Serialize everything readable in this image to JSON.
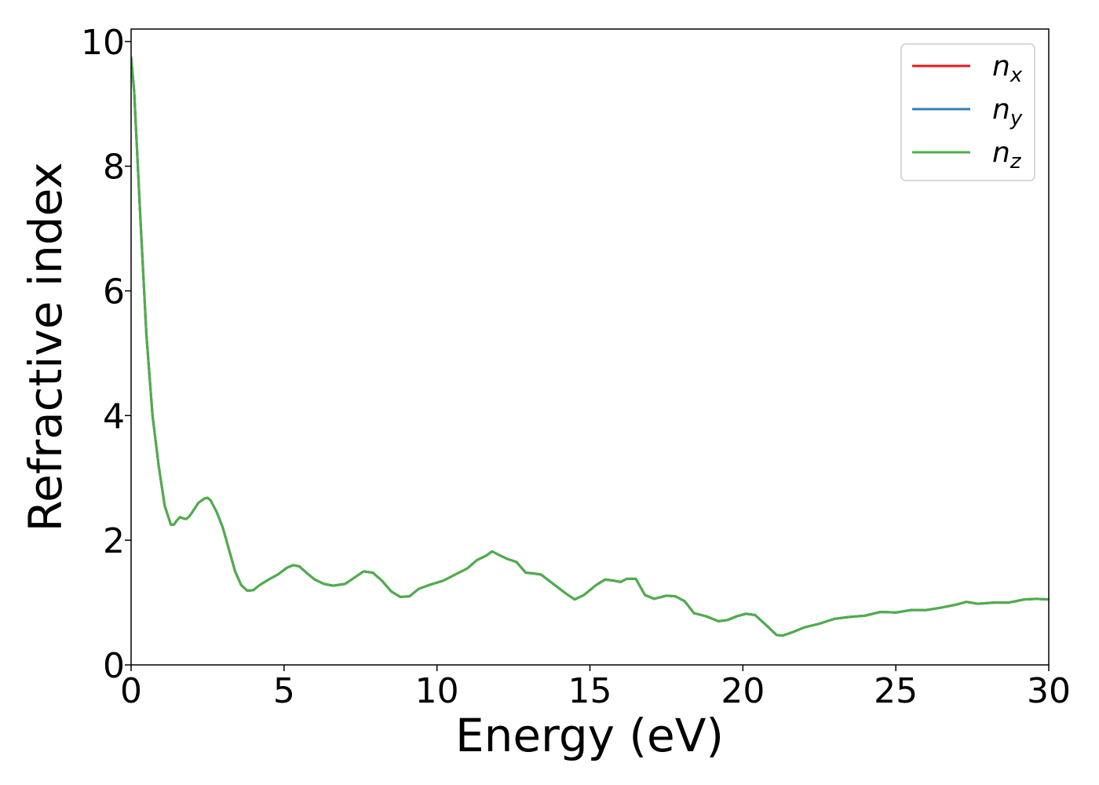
{
  "chart_data": {
    "type": "line",
    "xlabel": "Energy (eV)",
    "ylabel": "Refractive index",
    "xlim": [
      0,
      30
    ],
    "ylim": [
      0,
      10.2
    ],
    "x_ticks": [
      0,
      5,
      10,
      15,
      20,
      25,
      30
    ],
    "y_ticks": [
      0,
      2,
      4,
      6,
      8,
      10
    ],
    "grid": false,
    "legend_position": "top-right",
    "series": [
      {
        "name": "n",
        "subscript": "x",
        "color": "#e41a1c",
        "x": [
          0,
          0.1,
          0.3,
          0.5,
          0.7,
          0.9,
          1.1,
          1.3,
          1.4,
          1.5,
          1.6,
          1.7,
          1.8,
          1.9,
          2.0,
          2.2,
          2.4,
          2.5,
          2.6,
          2.8,
          3.0,
          3.2,
          3.4,
          3.6,
          3.8,
          4.0,
          4.2,
          4.5,
          4.8,
          5.1,
          5.3,
          5.5,
          5.8,
          6.0,
          6.3,
          6.6,
          7.0,
          7.3,
          7.6,
          7.9,
          8.2,
          8.5,
          8.8,
          9.1,
          9.4,
          9.8,
          10.2,
          10.6,
          11.0,
          11.3,
          11.6,
          11.8,
          12.0,
          12.3,
          12.6,
          12.9,
          13.1,
          13.4,
          13.8,
          14.2,
          14.5,
          14.8,
          15.2,
          15.5,
          15.8,
          16.0,
          16.2,
          16.5,
          16.8,
          17.1,
          17.5,
          17.8,
          18.1,
          18.4,
          18.8,
          19.2,
          19.5,
          19.8,
          20.1,
          20.4,
          20.8,
          21.1,
          21.3,
          21.6,
          22.0,
          22.5,
          23.0,
          23.5,
          24.0,
          24.5,
          25.0,
          25.5,
          26.0,
          26.5,
          27.0,
          27.3,
          27.7,
          28.2,
          28.7,
          29.2,
          29.6,
          30.0
        ],
        "y": [
          9.75,
          9.2,
          7.2,
          5.3,
          4.0,
          3.2,
          2.55,
          2.25,
          2.25,
          2.32,
          2.37,
          2.35,
          2.34,
          2.38,
          2.45,
          2.6,
          2.67,
          2.68,
          2.64,
          2.45,
          2.2,
          1.85,
          1.5,
          1.28,
          1.19,
          1.2,
          1.28,
          1.37,
          1.45,
          1.56,
          1.6,
          1.58,
          1.45,
          1.37,
          1.3,
          1.27,
          1.3,
          1.4,
          1.5,
          1.48,
          1.35,
          1.18,
          1.09,
          1.1,
          1.22,
          1.29,
          1.35,
          1.45,
          1.55,
          1.68,
          1.75,
          1.82,
          1.77,
          1.7,
          1.65,
          1.48,
          1.47,
          1.45,
          1.3,
          1.15,
          1.05,
          1.12,
          1.28,
          1.37,
          1.35,
          1.33,
          1.38,
          1.38,
          1.12,
          1.06,
          1.11,
          1.1,
          1.02,
          0.83,
          0.78,
          0.7,
          0.72,
          0.78,
          0.82,
          0.8,
          0.62,
          0.48,
          0.47,
          0.52,
          0.6,
          0.66,
          0.74,
          0.77,
          0.79,
          0.85,
          0.84,
          0.88,
          0.88,
          0.92,
          0.97,
          1.01,
          0.98,
          1.0,
          1.0,
          1.05,
          1.06,
          1.05
        ]
      },
      {
        "name": "n",
        "subscript": "y",
        "color": "#377eb8",
        "x": [
          0,
          0.1,
          0.3,
          0.5,
          0.7,
          0.9,
          1.1,
          1.3,
          1.4,
          1.5,
          1.6,
          1.7,
          1.8,
          1.9,
          2.0,
          2.2,
          2.4,
          2.5,
          2.6,
          2.8,
          3.0,
          3.2,
          3.4,
          3.6,
          3.8,
          4.0,
          4.2,
          4.5,
          4.8,
          5.1,
          5.3,
          5.5,
          5.8,
          6.0,
          6.3,
          6.6,
          7.0,
          7.3,
          7.6,
          7.9,
          8.2,
          8.5,
          8.8,
          9.1,
          9.4,
          9.8,
          10.2,
          10.6,
          11.0,
          11.3,
          11.6,
          11.8,
          12.0,
          12.3,
          12.6,
          12.9,
          13.1,
          13.4,
          13.8,
          14.2,
          14.5,
          14.8,
          15.2,
          15.5,
          15.8,
          16.0,
          16.2,
          16.5,
          16.8,
          17.1,
          17.5,
          17.8,
          18.1,
          18.4,
          18.8,
          19.2,
          19.5,
          19.8,
          20.1,
          20.4,
          20.8,
          21.1,
          21.3,
          21.6,
          22.0,
          22.5,
          23.0,
          23.5,
          24.0,
          24.5,
          25.0,
          25.5,
          26.0,
          26.5,
          27.0,
          27.3,
          27.7,
          28.2,
          28.7,
          29.2,
          29.6,
          30.0
        ],
        "y": [
          9.75,
          9.2,
          7.2,
          5.3,
          4.0,
          3.2,
          2.55,
          2.25,
          2.25,
          2.32,
          2.37,
          2.35,
          2.34,
          2.38,
          2.45,
          2.6,
          2.67,
          2.68,
          2.64,
          2.45,
          2.2,
          1.85,
          1.5,
          1.28,
          1.19,
          1.2,
          1.28,
          1.37,
          1.45,
          1.56,
          1.6,
          1.58,
          1.45,
          1.37,
          1.3,
          1.27,
          1.3,
          1.4,
          1.5,
          1.48,
          1.35,
          1.18,
          1.09,
          1.1,
          1.22,
          1.29,
          1.35,
          1.45,
          1.55,
          1.68,
          1.75,
          1.82,
          1.77,
          1.7,
          1.65,
          1.48,
          1.47,
          1.45,
          1.3,
          1.15,
          1.05,
          1.12,
          1.28,
          1.37,
          1.35,
          1.33,
          1.38,
          1.38,
          1.12,
          1.06,
          1.11,
          1.1,
          1.02,
          0.83,
          0.78,
          0.7,
          0.72,
          0.78,
          0.82,
          0.8,
          0.62,
          0.48,
          0.47,
          0.52,
          0.6,
          0.66,
          0.74,
          0.77,
          0.79,
          0.85,
          0.84,
          0.88,
          0.88,
          0.92,
          0.97,
          1.01,
          0.98,
          1.0,
          1.0,
          1.05,
          1.06,
          1.05
        ]
      },
      {
        "name": "n",
        "subscript": "z",
        "color": "#4daf4a",
        "x": [
          0,
          0.1,
          0.3,
          0.5,
          0.7,
          0.9,
          1.1,
          1.3,
          1.4,
          1.5,
          1.6,
          1.7,
          1.8,
          1.9,
          2.0,
          2.2,
          2.4,
          2.5,
          2.6,
          2.8,
          3.0,
          3.2,
          3.4,
          3.6,
          3.8,
          4.0,
          4.2,
          4.5,
          4.8,
          5.1,
          5.3,
          5.5,
          5.8,
          6.0,
          6.3,
          6.6,
          7.0,
          7.3,
          7.6,
          7.9,
          8.2,
          8.5,
          8.8,
          9.1,
          9.4,
          9.8,
          10.2,
          10.6,
          11.0,
          11.3,
          11.6,
          11.8,
          12.0,
          12.3,
          12.6,
          12.9,
          13.1,
          13.4,
          13.8,
          14.2,
          14.5,
          14.8,
          15.2,
          15.5,
          15.8,
          16.0,
          16.2,
          16.5,
          16.8,
          17.1,
          17.5,
          17.8,
          18.1,
          18.4,
          18.8,
          19.2,
          19.5,
          19.8,
          20.1,
          20.4,
          20.8,
          21.1,
          21.3,
          21.6,
          22.0,
          22.5,
          23.0,
          23.5,
          24.0,
          24.5,
          25.0,
          25.5,
          26.0,
          26.5,
          27.0,
          27.3,
          27.7,
          28.2,
          28.7,
          29.2,
          29.6,
          30.0
        ],
        "y": [
          9.75,
          9.2,
          7.2,
          5.3,
          4.0,
          3.2,
          2.55,
          2.25,
          2.25,
          2.32,
          2.37,
          2.35,
          2.34,
          2.38,
          2.45,
          2.6,
          2.67,
          2.68,
          2.64,
          2.45,
          2.2,
          1.85,
          1.5,
          1.28,
          1.19,
          1.2,
          1.28,
          1.37,
          1.45,
          1.56,
          1.6,
          1.58,
          1.45,
          1.37,
          1.3,
          1.27,
          1.3,
          1.4,
          1.5,
          1.48,
          1.35,
          1.18,
          1.09,
          1.1,
          1.22,
          1.29,
          1.35,
          1.45,
          1.55,
          1.68,
          1.75,
          1.82,
          1.77,
          1.7,
          1.65,
          1.48,
          1.47,
          1.45,
          1.3,
          1.15,
          1.05,
          1.12,
          1.28,
          1.37,
          1.35,
          1.33,
          1.38,
          1.38,
          1.12,
          1.06,
          1.11,
          1.1,
          1.02,
          0.83,
          0.78,
          0.7,
          0.72,
          0.78,
          0.82,
          0.8,
          0.62,
          0.48,
          0.47,
          0.52,
          0.6,
          0.66,
          0.74,
          0.77,
          0.79,
          0.85,
          0.84,
          0.88,
          0.88,
          0.92,
          0.97,
          1.01,
          0.98,
          1.0,
          1.0,
          1.05,
          1.06,
          1.05
        ]
      }
    ]
  }
}
